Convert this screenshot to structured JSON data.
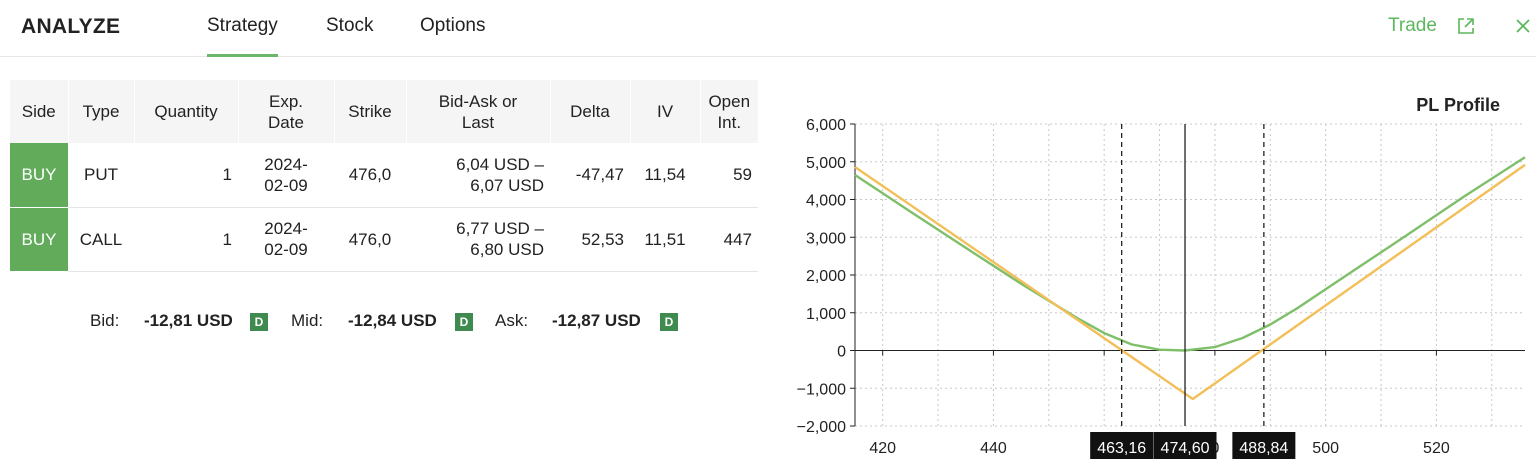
{
  "header": {
    "app_title": "ANALYZE",
    "tabs": [
      {
        "label": "Strategy",
        "active": true
      },
      {
        "label": "Stock",
        "active": false
      },
      {
        "label": "Options",
        "active": false
      }
    ],
    "trade_label": "Trade",
    "close_glyph": "X",
    "accent_color": "#6cb66c"
  },
  "table": {
    "headers": [
      "Side",
      "Type",
      "Quantity",
      "Exp.\nDate",
      "Strike",
      "Bid-Ask or\nLast",
      "Delta",
      "IV",
      "Open\nInt."
    ],
    "rows": [
      {
        "side": "BUY",
        "type": "PUT",
        "quantity": "1",
        "exp": "2024-\n02-09",
        "strike": "476,0",
        "bidask": "6,04 USD –\n6,07 USD",
        "delta": "-47,47",
        "iv": "11,54",
        "open_int": "59"
      },
      {
        "side": "BUY",
        "type": "CALL",
        "quantity": "1",
        "exp": "2024-\n02-09",
        "strike": "476,0",
        "bidask": "6,77 USD –\n6,80 USD",
        "delta": "52,53",
        "iv": "11,51",
        "open_int": "447"
      }
    ],
    "side_color": "#62ab5a"
  },
  "summary": {
    "bid_label": "Bid:",
    "bid_value": "-12,81 USD",
    "mid_label": "Mid:",
    "mid_value": "-12,84 USD",
    "ask_label": "Ask:",
    "ask_value": "-12,87 USD",
    "badge": "D"
  },
  "chart_data": {
    "type": "line",
    "title": "PL Profile",
    "xlabel": "",
    "ylabel": "",
    "xlim": [
      415,
      536
    ],
    "ylim": [
      -2000,
      6000
    ],
    "x_ticks": [
      420,
      440,
      500,
      520
    ],
    "x_tick_labels": [
      "420",
      "440",
      "500",
      "520"
    ],
    "y_ticks": [
      6000,
      5000,
      4000,
      3000,
      2000,
      1000,
      0,
      -1000,
      -2000
    ],
    "y_tick_labels": [
      "6,000",
      "5,000",
      "4,000",
      "3,000",
      "2,000",
      "1,000",
      "0",
      "−1,000",
      "−2,000"
    ],
    "grid": true,
    "series": [
      {
        "color": "#7fbf6a",
        "x": [
          415,
          425,
          435,
          445,
          455,
          460,
          465,
          470,
          474.6,
          480,
          485,
          490,
          495,
          505,
          515,
          525,
          536
        ],
        "y": [
          4650,
          3680,
          2720,
          1770,
          870,
          460,
          160,
          20,
          0,
          90,
          330,
          690,
          1130,
          2110,
          3090,
          4080,
          5120
        ]
      },
      {
        "color": "#f2bf59",
        "x": [
          415,
          476,
          536
        ],
        "y": [
          4860,
          -1284,
          4916
        ]
      }
    ],
    "vertical_markers": [
      {
        "x": 463.16,
        "label": "463,16",
        "style": "dashed"
      },
      {
        "x": 474.6,
        "label": "474,60",
        "style": "solid"
      },
      {
        "x": 488.84,
        "label": "488,84",
        "style": "dashed"
      }
    ],
    "marker_colors": {
      "dashed": "#222222",
      "solid": "#222222",
      "label_bg": "#111111",
      "label_fg": "#ffffff"
    },
    "hidden_partial_tick": "0"
  }
}
